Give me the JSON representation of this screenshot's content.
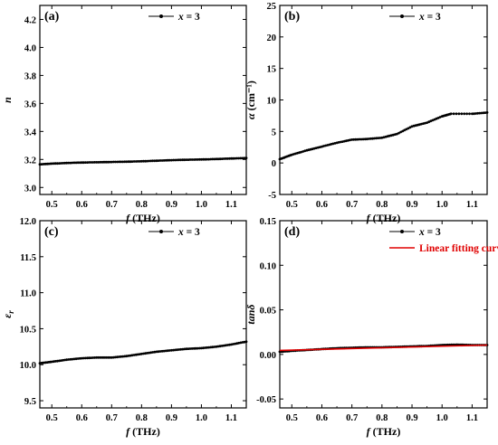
{
  "chart_data": [
    {
      "panel": "(a)",
      "type": "line",
      "xlabel": "f (THz)",
      "ylabel": "n",
      "xlim": [
        0.46,
        1.15
      ],
      "ylim": [
        2.95,
        4.3
      ],
      "xticks": [
        "0.5",
        "0.6",
        "0.7",
        "0.8",
        "0.9",
        "1.0",
        "1.1"
      ],
      "yticks": [
        "3.0",
        "3.2",
        "3.4",
        "3.6",
        "3.8",
        "4.0",
        "4.2"
      ],
      "legend": [
        "x = 3"
      ],
      "legend_position": "top-right",
      "series": [
        {
          "name": "x = 3",
          "color": "#000000",
          "points": [
            [
              0.46,
              3.165
            ],
            [
              0.5,
              3.17
            ],
            [
              0.55,
              3.175
            ],
            [
              0.6,
              3.178
            ],
            [
              0.65,
              3.18
            ],
            [
              0.7,
              3.182
            ],
            [
              0.75,
              3.184
            ],
            [
              0.8,
              3.187
            ],
            [
              0.85,
              3.191
            ],
            [
              0.9,
              3.195
            ],
            [
              0.95,
              3.198
            ],
            [
              1.0,
              3.2
            ],
            [
              1.05,
              3.203
            ],
            [
              1.1,
              3.207
            ],
            [
              1.15,
              3.21
            ]
          ]
        }
      ]
    },
    {
      "panel": "(b)",
      "type": "line",
      "xlabel": "f (THz)",
      "ylabel": "α (cm⁻¹)",
      "xlim": [
        0.46,
        1.15
      ],
      "ylim": [
        -5,
        25
      ],
      "xticks": [
        "0.5",
        "0.6",
        "0.7",
        "0.8",
        "0.9",
        "1.0",
        "1.1"
      ],
      "yticks": [
        "-5",
        "0",
        "5",
        "10",
        "15",
        "20",
        "25"
      ],
      "legend": [
        "x = 3"
      ],
      "legend_position": "top-right",
      "series": [
        {
          "name": "x = 3",
          "color": "#000000",
          "points": [
            [
              0.46,
              0.6
            ],
            [
              0.5,
              1.3
            ],
            [
              0.55,
              2.0
            ],
            [
              0.6,
              2.6
            ],
            [
              0.65,
              3.2
            ],
            [
              0.7,
              3.7
            ],
            [
              0.75,
              3.8
            ],
            [
              0.8,
              4.0
            ],
            [
              0.85,
              4.6
            ],
            [
              0.9,
              5.8
            ],
            [
              0.95,
              6.4
            ],
            [
              1.0,
              7.4
            ],
            [
              1.03,
              7.8
            ],
            [
              1.1,
              7.8
            ],
            [
              1.15,
              8.0
            ]
          ]
        }
      ]
    },
    {
      "panel": "(c)",
      "type": "line",
      "xlabel": "f (THz)",
      "ylabel": "εr",
      "xlim": [
        0.46,
        1.15
      ],
      "ylim": [
        9.4,
        12.0
      ],
      "xticks": [
        "0.5",
        "0.6",
        "0.7",
        "0.8",
        "0.9",
        "1.0",
        "1.1"
      ],
      "yticks": [
        "9.5",
        "10.0",
        "10.5",
        "11.0",
        "11.5",
        "12.0"
      ],
      "legend": [
        "x = 3"
      ],
      "legend_position": "top-right",
      "series": [
        {
          "name": "x = 3",
          "color": "#000000",
          "points": [
            [
              0.46,
              10.02
            ],
            [
              0.5,
              10.04
            ],
            [
              0.55,
              10.07
            ],
            [
              0.6,
              10.09
            ],
            [
              0.65,
              10.1
            ],
            [
              0.7,
              10.1
            ],
            [
              0.75,
              10.12
            ],
            [
              0.8,
              10.15
            ],
            [
              0.85,
              10.18
            ],
            [
              0.9,
              10.2
            ],
            [
              0.95,
              10.22
            ],
            [
              1.0,
              10.23
            ],
            [
              1.05,
              10.25
            ],
            [
              1.1,
              10.28
            ],
            [
              1.15,
              10.32
            ]
          ]
        }
      ]
    },
    {
      "panel": "(d)",
      "type": "line",
      "xlabel": "f (THz)",
      "ylabel": "tanδ",
      "xlim": [
        0.46,
        1.15
      ],
      "ylim": [
        -0.06,
        0.15
      ],
      "xticks": [
        "0.5",
        "0.6",
        "0.7",
        "0.8",
        "0.9",
        "1.0",
        "1.1"
      ],
      "yticks": [
        "-0.05",
        "0.00",
        "0.05",
        "0.10",
        "0.15"
      ],
      "legend": [
        "x = 3",
        "Linear fitting curve"
      ],
      "legend_position": "top-right",
      "series": [
        {
          "name": "x = 3",
          "color": "#000000",
          "points": [
            [
              0.46,
              0.003
            ],
            [
              0.5,
              0.004
            ],
            [
              0.55,
              0.005
            ],
            [
              0.6,
              0.006
            ],
            [
              0.65,
              0.007
            ],
            [
              0.7,
              0.0075
            ],
            [
              0.75,
              0.008
            ],
            [
              0.8,
              0.008
            ],
            [
              0.85,
              0.0085
            ],
            [
              0.9,
              0.009
            ],
            [
              0.95,
              0.0095
            ],
            [
              1.0,
              0.0105
            ],
            [
              1.05,
              0.011
            ],
            [
              1.1,
              0.0105
            ],
            [
              1.15,
              0.0105
            ]
          ]
        },
        {
          "name": "Linear fitting curve",
          "color": "#e00000",
          "points": [
            [
              0.46,
              0.0045
            ],
            [
              1.15,
              0.0105
            ]
          ]
        }
      ]
    }
  ]
}
